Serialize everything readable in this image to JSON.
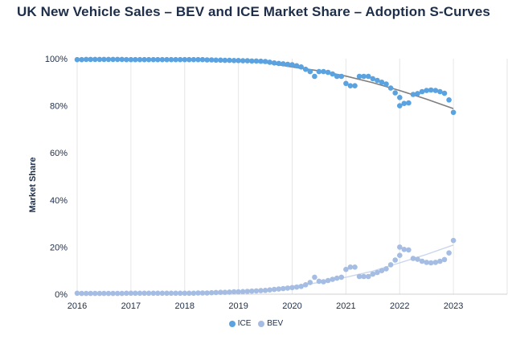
{
  "chart_data": {
    "type": "scatter",
    "title": "UK New Vehicle Sales – BEV and ICE Market Share – Adoption S-Curves",
    "xlabel": "",
    "ylabel": "Market Share",
    "xlim": [
      2016,
      2024
    ],
    "ylim": [
      0,
      100
    ],
    "x_ticks": [
      2016,
      2017,
      2018,
      2019,
      2020,
      2021,
      2022,
      2023
    ],
    "y_ticks": [
      0,
      20,
      40,
      60,
      80,
      100
    ],
    "y_tick_labels": [
      "0%",
      "20%",
      "40%",
      "60%",
      "80%",
      "100%"
    ],
    "grid": "vertical",
    "legend_position": "bottom",
    "series": [
      {
        "name": "ICE",
        "color": "#5aa3e0",
        "trend_color": "#7f7f7f",
        "trend": [
          [
            2016,
            99.8
          ],
          [
            2017,
            99.8
          ],
          [
            2018,
            99.6
          ],
          [
            2019,
            99.0
          ],
          [
            2019.5,
            98.3
          ],
          [
            2020,
            96.5
          ],
          [
            2020.5,
            94.8
          ],
          [
            2021,
            92.6
          ],
          [
            2021.5,
            89.8
          ],
          [
            2022,
            86.5
          ],
          [
            2022.5,
            82.8
          ],
          [
            2023,
            78.8
          ]
        ],
        "points": [
          [
            2016.0,
            99.6
          ],
          [
            2016.083,
            99.6
          ],
          [
            2016.167,
            99.7
          ],
          [
            2016.25,
            99.7
          ],
          [
            2016.333,
            99.7
          ],
          [
            2016.417,
            99.7
          ],
          [
            2016.5,
            99.7
          ],
          [
            2016.583,
            99.7
          ],
          [
            2016.667,
            99.7
          ],
          [
            2016.75,
            99.7
          ],
          [
            2016.833,
            99.7
          ],
          [
            2016.917,
            99.6
          ],
          [
            2017.0,
            99.6
          ],
          [
            2017.083,
            99.6
          ],
          [
            2017.167,
            99.6
          ],
          [
            2017.25,
            99.6
          ],
          [
            2017.333,
            99.6
          ],
          [
            2017.417,
            99.6
          ],
          [
            2017.5,
            99.6
          ],
          [
            2017.583,
            99.6
          ],
          [
            2017.667,
            99.6
          ],
          [
            2017.75,
            99.6
          ],
          [
            2017.833,
            99.6
          ],
          [
            2017.917,
            99.6
          ],
          [
            2018.0,
            99.6
          ],
          [
            2018.083,
            99.6
          ],
          [
            2018.167,
            99.6
          ],
          [
            2018.25,
            99.6
          ],
          [
            2018.333,
            99.6
          ],
          [
            2018.417,
            99.5
          ],
          [
            2018.5,
            99.5
          ],
          [
            2018.583,
            99.4
          ],
          [
            2018.667,
            99.4
          ],
          [
            2018.75,
            99.3
          ],
          [
            2018.833,
            99.3
          ],
          [
            2018.917,
            99.2
          ],
          [
            2019.0,
            99.2
          ],
          [
            2019.083,
            99.1
          ],
          [
            2019.167,
            99.1
          ],
          [
            2019.25,
            99.0
          ],
          [
            2019.333,
            99.0
          ],
          [
            2019.417,
            98.9
          ],
          [
            2019.5,
            98.8
          ],
          [
            2019.583,
            98.5
          ],
          [
            2019.667,
            98.2
          ],
          [
            2019.75,
            98.0
          ],
          [
            2019.833,
            97.8
          ],
          [
            2019.917,
            97.6
          ],
          [
            2020.0,
            97.4
          ],
          [
            2020.083,
            97.0
          ],
          [
            2020.167,
            96.5
          ],
          [
            2020.25,
            95.5
          ],
          [
            2020.333,
            94.5
          ],
          [
            2020.417,
            92.5
          ],
          [
            2020.5,
            94.5
          ],
          [
            2020.583,
            94.5
          ],
          [
            2020.667,
            94.2
          ],
          [
            2020.75,
            93.5
          ],
          [
            2020.833,
            92.5
          ],
          [
            2020.917,
            92.5
          ],
          [
            2021.0,
            89.5
          ],
          [
            2021.083,
            88.5
          ],
          [
            2021.167,
            88.5
          ],
          [
            2021.25,
            92.5
          ],
          [
            2021.333,
            92.5
          ],
          [
            2021.417,
            92.5
          ],
          [
            2021.5,
            91.5
          ],
          [
            2021.583,
            90.8
          ],
          [
            2021.667,
            90.0
          ],
          [
            2021.75,
            89.2
          ],
          [
            2021.833,
            87.5
          ],
          [
            2021.917,
            85.5
          ],
          [
            2022.0,
            83.5
          ],
          [
            2022.0,
            80.0
          ],
          [
            2022.083,
            81.0
          ],
          [
            2022.167,
            81.2
          ],
          [
            2022.25,
            84.8
          ],
          [
            2022.333,
            85.2
          ],
          [
            2022.417,
            86.0
          ],
          [
            2022.5,
            86.5
          ],
          [
            2022.583,
            86.7
          ],
          [
            2022.667,
            86.5
          ],
          [
            2022.75,
            86.0
          ],
          [
            2022.833,
            85.3
          ],
          [
            2022.917,
            82.5
          ],
          [
            2023.0,
            77.2
          ]
        ]
      },
      {
        "name": "BEV",
        "color": "#a6bde3",
        "trend_color": "#c9d6ee",
        "trend": [
          [
            2016,
            0.2
          ],
          [
            2017,
            0.3
          ],
          [
            2018,
            0.5
          ],
          [
            2019,
            1.0
          ],
          [
            2019.5,
            1.7
          ],
          [
            2020,
            3.3
          ],
          [
            2020.5,
            5.0
          ],
          [
            2021,
            7.2
          ],
          [
            2021.5,
            9.8
          ],
          [
            2022,
            13.3
          ],
          [
            2022.5,
            16.9
          ],
          [
            2023,
            20.9
          ]
        ],
        "points": [
          [
            2016.0,
            0.4
          ],
          [
            2016.083,
            0.3
          ],
          [
            2016.167,
            0.3
          ],
          [
            2016.25,
            0.3
          ],
          [
            2016.333,
            0.3
          ],
          [
            2016.417,
            0.3
          ],
          [
            2016.5,
            0.3
          ],
          [
            2016.583,
            0.3
          ],
          [
            2016.667,
            0.3
          ],
          [
            2016.75,
            0.3
          ],
          [
            2016.833,
            0.3
          ],
          [
            2016.917,
            0.4
          ],
          [
            2017.0,
            0.4
          ],
          [
            2017.083,
            0.4
          ],
          [
            2017.167,
            0.4
          ],
          [
            2017.25,
            0.4
          ],
          [
            2017.333,
            0.4
          ],
          [
            2017.417,
            0.4
          ],
          [
            2017.5,
            0.4
          ],
          [
            2017.583,
            0.4
          ],
          [
            2017.667,
            0.4
          ],
          [
            2017.75,
            0.4
          ],
          [
            2017.833,
            0.4
          ],
          [
            2017.917,
            0.4
          ],
          [
            2018.0,
            0.4
          ],
          [
            2018.083,
            0.4
          ],
          [
            2018.167,
            0.4
          ],
          [
            2018.25,
            0.5
          ],
          [
            2018.333,
            0.5
          ],
          [
            2018.417,
            0.5
          ],
          [
            2018.5,
            0.6
          ],
          [
            2018.583,
            0.7
          ],
          [
            2018.667,
            0.8
          ],
          [
            2018.75,
            0.8
          ],
          [
            2018.833,
            0.9
          ],
          [
            2018.917,
            1.0
          ],
          [
            2019.0,
            1.0
          ],
          [
            2019.083,
            1.1
          ],
          [
            2019.167,
            1.2
          ],
          [
            2019.25,
            1.3
          ],
          [
            2019.333,
            1.4
          ],
          [
            2019.417,
            1.5
          ],
          [
            2019.5,
            1.6
          ],
          [
            2019.583,
            1.8
          ],
          [
            2019.667,
            2.0
          ],
          [
            2019.75,
            2.2
          ],
          [
            2019.833,
            2.4
          ],
          [
            2019.917,
            2.6
          ],
          [
            2020.0,
            2.8
          ],
          [
            2020.083,
            3.0
          ],
          [
            2020.167,
            3.3
          ],
          [
            2020.25,
            4.0
          ],
          [
            2020.333,
            5.0
          ],
          [
            2020.417,
            7.2
          ],
          [
            2020.5,
            5.5
          ],
          [
            2020.583,
            5.3
          ],
          [
            2020.667,
            5.8
          ],
          [
            2020.75,
            6.3
          ],
          [
            2020.833,
            6.8
          ],
          [
            2020.917,
            7.2
          ],
          [
            2021.0,
            10.5
          ],
          [
            2021.083,
            11.5
          ],
          [
            2021.167,
            11.5
          ],
          [
            2021.25,
            7.5
          ],
          [
            2021.333,
            7.5
          ],
          [
            2021.417,
            7.5
          ],
          [
            2021.5,
            8.5
          ],
          [
            2021.583,
            9.2
          ],
          [
            2021.667,
            10.0
          ],
          [
            2021.75,
            10.8
          ],
          [
            2021.833,
            12.5
          ],
          [
            2021.917,
            14.5
          ],
          [
            2022.0,
            16.5
          ],
          [
            2022.0,
            20.0
          ],
          [
            2022.083,
            19.0
          ],
          [
            2022.167,
            18.8
          ],
          [
            2022.25,
            15.2
          ],
          [
            2022.333,
            14.8
          ],
          [
            2022.417,
            14.0
          ],
          [
            2022.5,
            13.5
          ],
          [
            2022.583,
            13.3
          ],
          [
            2022.667,
            13.5
          ],
          [
            2022.75,
            14.0
          ],
          [
            2022.833,
            14.7
          ],
          [
            2022.917,
            17.5
          ],
          [
            2023.0,
            22.8
          ]
        ]
      }
    ]
  }
}
